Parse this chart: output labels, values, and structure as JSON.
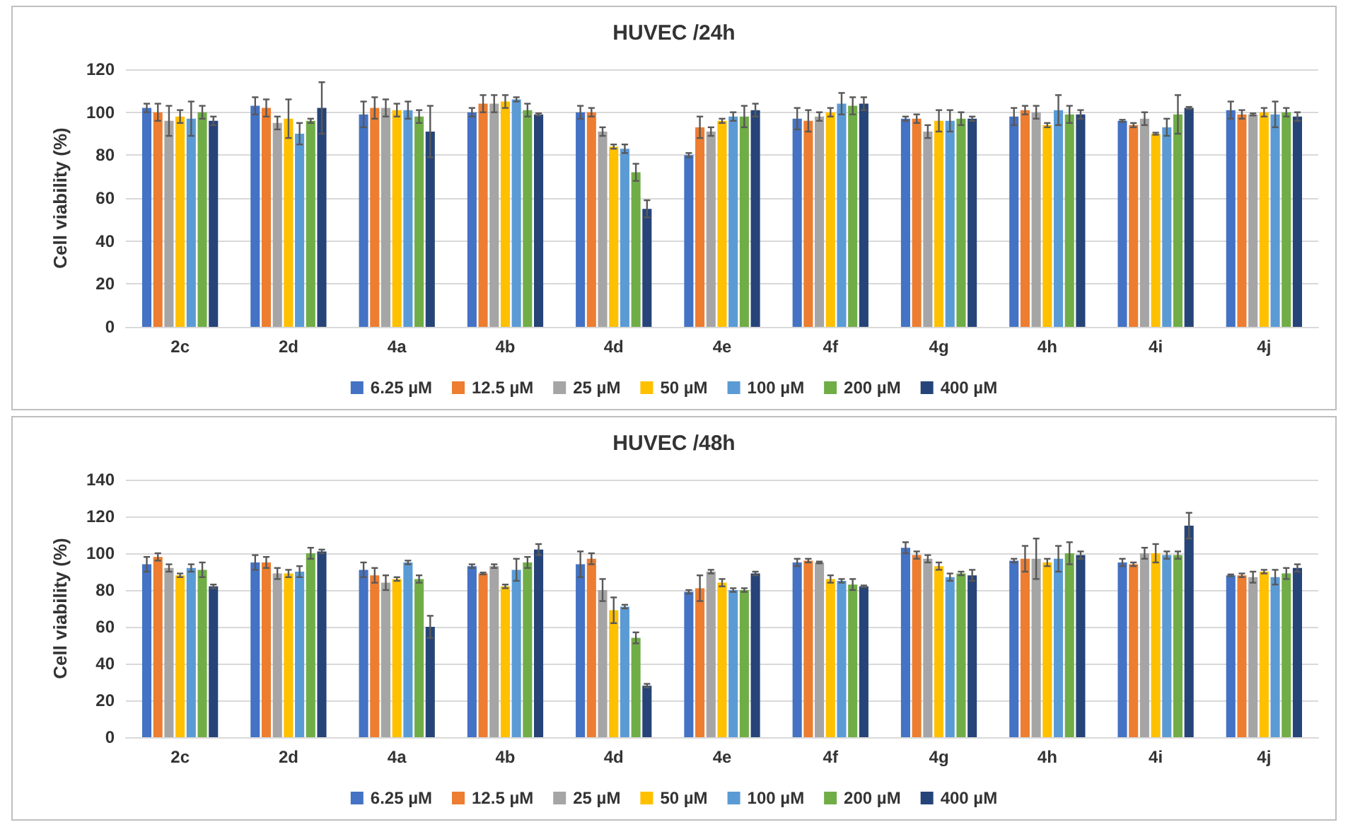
{
  "chart_data": [
    {
      "type": "bar",
      "title": "HUVEC /24h",
      "ylabel": "Cell viability (%)",
      "categories": [
        "2c",
        "2d",
        "4a",
        "4b",
        "4d",
        "4e",
        "4f",
        "4g",
        "4h",
        "4i",
        "4j"
      ],
      "ylim": [
        0,
        120
      ],
      "yticks": [
        0,
        20,
        40,
        60,
        80,
        100,
        120
      ],
      "grid": "y",
      "legend": "bottom",
      "series": [
        {
          "name": "6.25 µM",
          "color": "#4472c4",
          "values": [
            102,
            103,
            99,
            100,
            100,
            80,
            97,
            97,
            98,
            96,
            101
          ],
          "errors": [
            2,
            4,
            6,
            2,
            3,
            1,
            5,
            1,
            4,
            0.5,
            4
          ]
        },
        {
          "name": "12.5 µM",
          "color": "#ed7d31",
          "values": [
            100,
            102,
            102,
            104,
            100,
            93,
            96,
            97,
            101,
            94,
            99
          ],
          "errors": [
            4,
            4,
            5,
            4,
            2,
            5,
            5,
            2,
            2,
            1,
            2
          ]
        },
        {
          "name": "25 µM",
          "color": "#a5a5a5",
          "values": [
            96,
            95,
            102,
            104,
            91,
            91,
            98,
            91,
            100,
            97,
            99
          ],
          "errors": [
            7,
            3,
            4,
            4,
            2,
            2,
            2,
            3,
            3,
            3,
            0.5
          ]
        },
        {
          "name": "50 µM",
          "color": "#ffc000",
          "values": [
            98,
            97,
            101,
            105,
            84,
            96,
            100,
            96,
            94,
            90,
            100
          ],
          "errors": [
            3,
            9,
            3,
            3,
            1,
            1,
            2,
            5,
            1,
            0.5,
            2
          ]
        },
        {
          "name": "100 µM",
          "color": "#5b9bd5",
          "values": [
            97,
            90,
            101,
            106,
            83,
            98,
            104,
            96,
            101,
            93,
            99
          ],
          "errors": [
            8,
            5,
            4,
            1,
            2,
            2,
            5,
            5,
            7,
            4,
            6
          ]
        },
        {
          "name": "200 µM",
          "color": "#70ad47",
          "values": [
            100,
            96,
            98,
            101,
            72,
            98,
            103,
            97,
            99,
            99,
            100
          ],
          "errors": [
            3,
            1,
            3,
            3,
            4,
            5,
            4,
            3,
            4,
            9,
            2
          ]
        },
        {
          "name": "400 µM",
          "color": "#264478",
          "values": [
            96,
            102,
            91,
            99,
            55,
            101,
            104,
            97,
            99,
            102,
            98
          ],
          "errors": [
            2,
            12,
            12,
            0.5,
            4,
            3,
            3,
            1,
            2,
            0.5,
            2
          ]
        }
      ]
    },
    {
      "type": "bar",
      "title": "HUVEC /48h",
      "ylabel": "Cell viability (%)",
      "categories": [
        "2c",
        "2d",
        "4a",
        "4b",
        "4d",
        "4e",
        "4f",
        "4g",
        "4h",
        "4i",
        "4j"
      ],
      "ylim": [
        0,
        140
      ],
      "yticks": [
        0,
        20,
        40,
        60,
        80,
        100,
        120,
        140
      ],
      "grid": "y",
      "legend": "bottom",
      "series": [
        {
          "name": "6.25 µM",
          "color": "#4472c4",
          "values": [
            94,
            95,
            91,
            93,
            94,
            79,
            95,
            103,
            96,
            95,
            88
          ],
          "errors": [
            4,
            4,
            4,
            1,
            7,
            1,
            2,
            3,
            1,
            2,
            0.5
          ]
        },
        {
          "name": "12.5 µM",
          "color": "#ed7d31",
          "values": [
            98,
            95,
            88,
            89,
            97,
            81,
            96,
            99,
            97,
            94,
            88
          ],
          "errors": [
            2,
            3,
            4,
            0.5,
            3,
            7,
            1,
            2,
            7,
            1,
            1
          ]
        },
        {
          "name": "25 µM",
          "color": "#a5a5a5",
          "values": [
            92,
            89,
            84,
            93,
            80,
            90,
            95,
            97,
            97,
            100,
            87
          ],
          "errors": [
            2,
            3,
            4,
            1,
            6,
            1,
            0.5,
            2,
            11,
            3,
            3
          ]
        },
        {
          "name": "50 µM",
          "color": "#ffc000",
          "values": [
            88,
            89,
            86,
            82,
            69,
            84,
            86,
            93,
            95,
            100,
            90
          ],
          "errors": [
            1,
            2,
            1,
            1,
            7,
            2,
            2,
            2,
            2,
            5,
            1
          ]
        },
        {
          "name": "100 µM",
          "color": "#5b9bd5",
          "values": [
            92,
            90,
            95,
            91,
            71,
            80,
            85,
            87,
            97,
            99,
            87
          ],
          "errors": [
            2,
            3,
            1,
            6,
            1,
            1,
            1,
            2,
            7,
            2,
            4
          ]
        },
        {
          "name": "200 µM",
          "color": "#70ad47",
          "values": [
            91,
            100,
            86,
            95,
            54,
            80,
            83,
            89,
            100,
            99,
            89
          ],
          "errors": [
            4,
            3,
            2,
            3,
            3,
            1,
            3,
            1,
            6,
            2,
            3
          ]
        },
        {
          "name": "400 µM",
          "color": "#264478",
          "values": [
            82,
            101,
            60,
            102,
            28,
            89,
            82,
            88,
            99,
            115,
            92
          ],
          "errors": [
            1,
            1,
            6,
            3,
            1,
            1,
            0.5,
            3,
            2,
            7,
            2
          ]
        }
      ]
    }
  ]
}
